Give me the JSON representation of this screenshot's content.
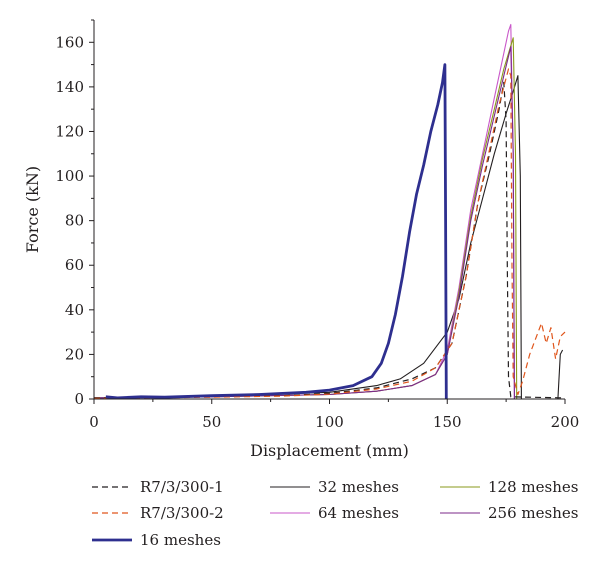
{
  "chart_data": {
    "type": "line",
    "title": "",
    "xlabel": "Displacement (mm)",
    "ylabel": "Force (kN)",
    "xlim": [
      0,
      200
    ],
    "ylim": [
      0,
      170
    ],
    "x_ticks": [
      0,
      50,
      100,
      150,
      200
    ],
    "y_ticks": [
      0,
      20,
      40,
      60,
      80,
      100,
      120,
      140,
      160
    ],
    "x_tick_labels": [
      "0",
      "50",
      "100",
      "150",
      "200"
    ],
    "y_tick_labels": [
      "0",
      "20",
      "40",
      "60",
      "80",
      "100",
      "120",
      "140",
      "160"
    ],
    "grid": false,
    "legend_position": "bottom",
    "series": [
      {
        "name": "R7/3/300-1",
        "color": "#231f20",
        "style": "dashed",
        "points": [
          [
            0,
            0.5
          ],
          [
            20,
            0.8
          ],
          [
            50,
            1
          ],
          [
            80,
            1.5
          ],
          [
            100,
            2.5
          ],
          [
            120,
            5
          ],
          [
            135,
            9
          ],
          [
            145,
            14
          ],
          [
            152,
            25
          ],
          [
            158,
            55
          ],
          [
            163,
            88
          ],
          [
            168,
            110
          ],
          [
            172,
            130
          ],
          [
            174,
            142
          ],
          [
            175,
            125
          ],
          [
            175.5,
            60
          ],
          [
            176,
            10
          ],
          [
            177,
            1
          ],
          [
            200,
            0.5
          ]
        ]
      },
      {
        "name": "R7/3/300-2",
        "color": "#e0561c",
        "style": "dashed",
        "points": [
          [
            0,
            0.3
          ],
          [
            20,
            0.5
          ],
          [
            50,
            0.8
          ],
          [
            80,
            1.3
          ],
          [
            100,
            2.2
          ],
          [
            120,
            4.5
          ],
          [
            135,
            8
          ],
          [
            145,
            14
          ],
          [
            152,
            25
          ],
          [
            158,
            55
          ],
          [
            163,
            88
          ],
          [
            168,
            112
          ],
          [
            172,
            132
          ],
          [
            176,
            148
          ],
          [
            177,
            145
          ],
          [
            177.5,
            60
          ],
          [
            178,
            10
          ],
          [
            180,
            2
          ],
          [
            182,
            8
          ],
          [
            185,
            20
          ],
          [
            190,
            34
          ],
          [
            192,
            25
          ],
          [
            194,
            32
          ],
          [
            196,
            18
          ],
          [
            198,
            28
          ],
          [
            200,
            30
          ]
        ]
      },
      {
        "name": "16 meshes",
        "color": "#2e2f8f",
        "style": "solid-thick",
        "points": [
          [
            5,
            1
          ],
          [
            10,
            0.5
          ],
          [
            20,
            1
          ],
          [
            30,
            0.8
          ],
          [
            50,
            1.5
          ],
          [
            70,
            2
          ],
          [
            90,
            3
          ],
          [
            100,
            4
          ],
          [
            110,
            6
          ],
          [
            118,
            10
          ],
          [
            122,
            16
          ],
          [
            125,
            25
          ],
          [
            128,
            38
          ],
          [
            131,
            55
          ],
          [
            134,
            75
          ],
          [
            137,
            92
          ],
          [
            140,
            105
          ],
          [
            143,
            120
          ],
          [
            146,
            132
          ],
          [
            148,
            142
          ],
          [
            149,
            150
          ],
          [
            149.3,
            80
          ],
          [
            149.6,
            0
          ]
        ]
      },
      {
        "name": "32 meshes",
        "color": "#231f20",
        "style": "solid",
        "points": [
          [
            0,
            0.5
          ],
          [
            50,
            1.2
          ],
          [
            100,
            3
          ],
          [
            120,
            6
          ],
          [
            130,
            9
          ],
          [
            140,
            16
          ],
          [
            150,
            30
          ],
          [
            155,
            45
          ],
          [
            160,
            70
          ],
          [
            165,
            90
          ],
          [
            170,
            110
          ],
          [
            175,
            128
          ],
          [
            178,
            138
          ],
          [
            180,
            145
          ],
          [
            181,
            100
          ],
          [
            181.5,
            0
          ],
          [
            195,
            0
          ],
          [
            197,
            0
          ],
          [
            198,
            20
          ],
          [
            199,
            22
          ]
        ]
      },
      {
        "name": "64 meshes",
        "color": "#c957c9",
        "style": "solid",
        "points": [
          [
            0,
            0.5
          ],
          [
            50,
            1
          ],
          [
            100,
            2
          ],
          [
            120,
            3.5
          ],
          [
            135,
            6
          ],
          [
            145,
            11
          ],
          [
            150,
            22
          ],
          [
            155,
            50
          ],
          [
            160,
            85
          ],
          [
            165,
            110
          ],
          [
            170,
            135
          ],
          [
            173,
            150
          ],
          [
            176,
            165
          ],
          [
            177,
            168
          ],
          [
            178,
            110
          ],
          [
            178.5,
            0
          ],
          [
            200,
            0
          ]
        ]
      },
      {
        "name": "128 meshes",
        "color": "#8a9a1b",
        "style": "solid",
        "points": [
          [
            0,
            0.5
          ],
          [
            50,
            1
          ],
          [
            100,
            2
          ],
          [
            120,
            3.5
          ],
          [
            135,
            6
          ],
          [
            145,
            11
          ],
          [
            150,
            20
          ],
          [
            155,
            48
          ],
          [
            160,
            82
          ],
          [
            165,
            108
          ],
          [
            170,
            130
          ],
          [
            174,
            148
          ],
          [
            178,
            162
          ],
          [
            179,
            110
          ],
          [
            179.5,
            0
          ],
          [
            200,
            0
          ]
        ]
      },
      {
        "name": "256 meshes",
        "color": "#7b2a8a",
        "style": "solid",
        "points": [
          [
            0,
            0.5
          ],
          [
            50,
            1
          ],
          [
            100,
            2
          ],
          [
            120,
            3.5
          ],
          [
            135,
            6
          ],
          [
            145,
            11
          ],
          [
            150,
            20
          ],
          [
            155,
            46
          ],
          [
            160,
            80
          ],
          [
            165,
            105
          ],
          [
            170,
            127
          ],
          [
            174,
            145
          ],
          [
            177,
            158
          ],
          [
            178,
            110
          ],
          [
            178.5,
            0
          ],
          [
            200,
            0
          ]
        ]
      }
    ],
    "legend": [
      {
        "series": 0,
        "label": "R7/3/300-1"
      },
      {
        "series": 3,
        "label": "32 meshes"
      },
      {
        "series": 5,
        "label": "128 meshes"
      },
      {
        "series": 1,
        "label": "R7/3/300-2"
      },
      {
        "series": 4,
        "label": "64 meshes"
      },
      {
        "series": 6,
        "label": "256 meshes"
      },
      {
        "series": 2,
        "label": "16 meshes"
      }
    ]
  }
}
